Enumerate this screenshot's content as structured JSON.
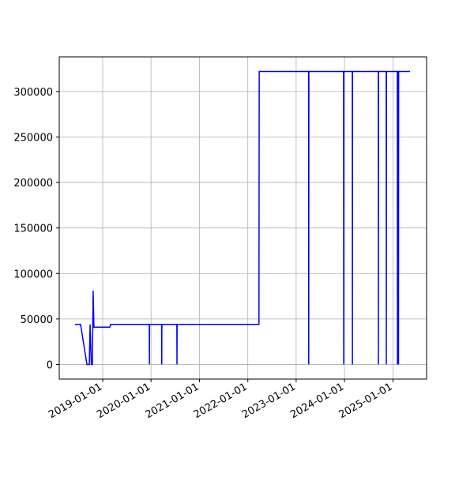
{
  "chart_data": {
    "type": "line",
    "color": "#0000ff",
    "grid": true,
    "x": [
      "2018-06-06",
      "2018-07-18",
      "2018-09-04",
      "2018-09-22",
      "2018-09-28",
      "2018-10-07",
      "2018-10-15",
      "2018-10-21",
      "2018-10-27",
      "2019-02-24",
      "2019-03-02",
      "2019-12-19",
      "2019-12-20",
      "2019-12-21",
      "2020-03-21",
      "2020-03-22",
      "2020-03-23",
      "2020-07-14",
      "2020-07-15",
      "2020-07-16",
      "2022-03-26",
      "2022-03-28",
      "2023-04-05",
      "2023-04-06",
      "2023-04-07",
      "2023-12-25",
      "2023-12-26",
      "2023-12-27",
      "2024-02-29",
      "2024-03-01",
      "2024-03-02",
      "2024-09-12",
      "2024-09-13",
      "2024-09-14",
      "2024-11-11",
      "2024-11-12",
      "2024-11-13",
      "2025-02-03",
      "2025-02-04",
      "2025-02-05",
      "2025-02-11",
      "2025-02-12",
      "2025-02-13",
      "2025-05-10"
    ],
    "values": [
      44000,
      44000,
      0,
      0,
      44000,
      0,
      0,
      81000,
      41000,
      41000,
      44000,
      44000,
      0,
      44000,
      44000,
      0,
      44000,
      44000,
      0,
      44000,
      44000,
      322000,
      322000,
      0,
      322000,
      322000,
      0,
      322000,
      322000,
      0,
      322000,
      322000,
      0,
      322000,
      322000,
      0,
      322000,
      322000,
      0,
      322000,
      322000,
      0,
      322000,
      322000
    ],
    "xlim": [
      "2018-02-07",
      "2025-09-12"
    ],
    "xticks": [
      "2019-01-01",
      "2020-01-01",
      "2021-01-01",
      "2022-01-01",
      "2023-01-01",
      "2024-01-01",
      "2025-01-01"
    ],
    "ylim": [
      -16100,
      338100
    ],
    "yticks": [
      0,
      50000,
      100000,
      150000,
      200000,
      250000,
      300000
    ]
  }
}
